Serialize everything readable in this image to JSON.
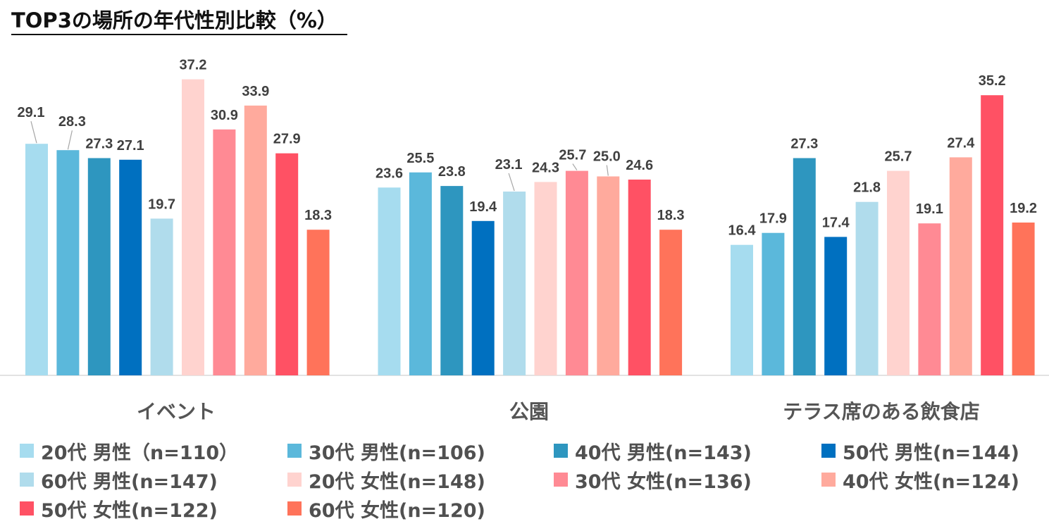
{
  "title": "TOP3の場所の年代性別比較（%）",
  "chart_data": {
    "type": "bar",
    "title": "TOP3の場所の年代性別比較（%）",
    "categories": [
      "イベント",
      "公園",
      "テラス席のある飲食店"
    ],
    "ylim": [
      0,
      40
    ],
    "xlabel": "",
    "ylabel": "",
    "grid": false,
    "legend_position": "bottom",
    "series": [
      {
        "name": "20代 男性（n=110）",
        "color": "#A6DCEF",
        "values": [
          29.1,
          23.6,
          16.4
        ]
      },
      {
        "name": "30代 男性(n=106)",
        "color": "#5BB8DB",
        "values": [
          28.3,
          25.5,
          17.9
        ]
      },
      {
        "name": "40代 男性(n=143)",
        "color": "#2E96BF",
        "values": [
          27.3,
          23.8,
          27.3
        ]
      },
      {
        "name": "50代 男性(n=144)",
        "color": "#0070C0",
        "values": [
          27.1,
          19.4,
          17.4
        ]
      },
      {
        "name": "60代 男性(n=147)",
        "color": "#B0DCEC",
        "values": [
          19.7,
          23.1,
          21.8
        ]
      },
      {
        "name": "20代 女性(n=148)",
        "color": "#FFD3CF",
        "values": [
          37.2,
          24.3,
          25.7
        ]
      },
      {
        "name": "30代 女性(n=136)",
        "color": "#FF8A94",
        "values": [
          30.9,
          25.7,
          19.1
        ]
      },
      {
        "name": "40代 女性(n=124)",
        "color": "#FFAA9D",
        "values": [
          33.9,
          25.0,
          27.4
        ]
      },
      {
        "name": "50代 女性(n=122)",
        "color": "#FF5164",
        "values": [
          27.9,
          24.6,
          35.2
        ]
      },
      {
        "name": "60代 女性(n=120)",
        "color": "#FF735A",
        "values": [
          18.3,
          18.3,
          19.2
        ]
      }
    ]
  }
}
